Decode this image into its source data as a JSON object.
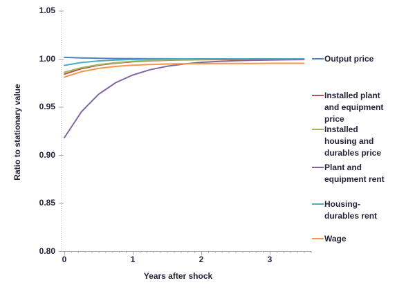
{
  "axes": {
    "y_tick_labels": [
      "1.05",
      "1.00",
      "0.95",
      "0.90",
      "0.85",
      "0.80"
    ],
    "y_tick_values": [
      1.05,
      1.0,
      0.95,
      0.9,
      0.85,
      0.8
    ],
    "x_tick_labels": [
      "0",
      "1",
      "2",
      "3"
    ],
    "x_tick_values": [
      0,
      1,
      2,
      3
    ],
    "axis_color": "#a6a6a6",
    "text_color": "#23233a"
  },
  "legend": {
    "position": "right",
    "items": [
      {
        "lines": "Output price",
        "color": "#4F81BD"
      },
      {
        "lines": "Installed plant\nand equipment\nprice",
        "color": "#C0504D"
      },
      {
        "lines": "Installed\nhousing and\ndurables price",
        "color": "#9BBB59"
      },
      {
        "lines": "Plant and\nequipment rent",
        "color": "#8064A2"
      },
      {
        "lines": "Housing-\ndurables rent",
        "color": "#4BACC6"
      },
      {
        "lines": "Wage",
        "color": "#F79646"
      }
    ]
  },
  "chart_data": {
    "type": "line",
    "title": "",
    "xlabel": "Years after shock",
    "ylabel": "Ratio to stationary value",
    "xlim": [
      0,
      3.6
    ],
    "ylim": [
      0.8,
      1.05
    ],
    "grid": false,
    "legend_position": "right",
    "x": [
      0,
      0.25,
      0.5,
      0.75,
      1,
      1.25,
      1.5,
      1.75,
      2,
      2.25,
      2.5,
      2.75,
      3,
      3.25,
      3.5
    ],
    "series": [
      {
        "name": "Output price",
        "color": "#4F81BD",
        "values": [
          1.0015,
          1.0009,
          1.0006,
          1.0003,
          1.0002,
          1.0001,
          1.0001,
          1.0,
          1.0,
          1.0,
          1.0,
          1.0,
          1.0,
          1.0,
          1.0
        ]
      },
      {
        "name": "Installed plant and equipment price",
        "color": "#C0504D",
        "values": [
          0.984,
          0.9897,
          0.9933,
          0.9955,
          0.997,
          0.9979,
          0.9985,
          0.9989,
          0.9991,
          0.9992,
          0.9993,
          0.9994,
          0.9994,
          0.9995,
          0.9995
        ]
      },
      {
        "name": "Installed housing and durables price",
        "color": "#9BBB59",
        "values": [
          0.986,
          0.9908,
          0.9939,
          0.996,
          0.9974,
          0.9983,
          0.9988,
          0.9992,
          0.9995,
          0.9997,
          0.9998,
          0.9998,
          0.9999,
          0.9999,
          0.9999
        ]
      },
      {
        "name": "Plant and equipment rent",
        "color": "#8064A2",
        "values": [
          0.918,
          0.945,
          0.9631,
          0.9752,
          0.9832,
          0.9886,
          0.9922,
          0.9947,
          0.9963,
          0.9973,
          0.998,
          0.9985,
          0.9988,
          0.999,
          0.9992
        ]
      },
      {
        "name": "Housing-durables rent",
        "color": "#4BACC6",
        "values": [
          0.9932,
          0.9961,
          0.9978,
          0.9987,
          0.9993,
          0.9996,
          0.9998,
          0.9999,
          0.9999,
          1.0,
          1.0,
          1.0,
          1.0,
          1.0,
          1.0
        ]
      },
      {
        "name": "Wage",
        "color": "#F79646",
        "values": [
          0.981,
          0.9866,
          0.99,
          0.9921,
          0.9934,
          0.9941,
          0.9946,
          0.9949,
          0.995,
          0.9951,
          0.9952,
          0.9952,
          0.9953,
          0.9953,
          0.9953
        ]
      }
    ]
  }
}
